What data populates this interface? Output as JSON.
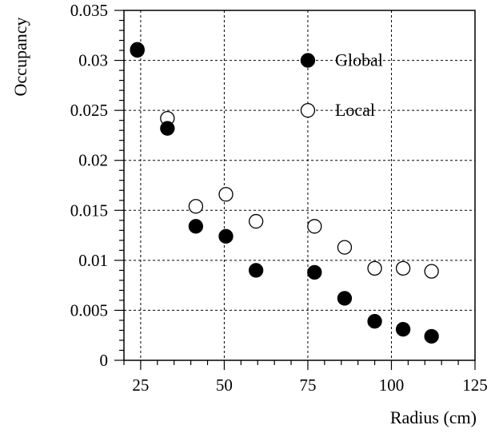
{
  "chart_data": {
    "type": "scatter",
    "title": "",
    "xlabel": "Radius (cm)",
    "ylabel": "Occupancy",
    "xlim": [
      20,
      125
    ],
    "ylim": [
      0,
      0.035
    ],
    "grid": true,
    "legend_position": "upper-right",
    "x_ticks": [
      25,
      50,
      75,
      100,
      125
    ],
    "x_tick_labels": [
      "25",
      "50",
      "75",
      "100",
      "125"
    ],
    "y_ticks": [
      0,
      0.005,
      0.01,
      0.015,
      0.02,
      0.025,
      0.03,
      0.035
    ],
    "y_tick_labels": [
      "0",
      "0.005",
      "0.01",
      "0.015",
      "0.02",
      "0.025",
      "0.03",
      "0.035"
    ],
    "series": [
      {
        "name": "Global",
        "marker": "filled-circle",
        "color": "#000000",
        "x": [
          24,
          33,
          41.5,
          50.5,
          59.5,
          77,
          86,
          95,
          103.5,
          112
        ],
        "y": [
          0.031,
          0.0232,
          0.0134,
          0.0124,
          0.009,
          0.0088,
          0.0062,
          0.0039,
          0.0031,
          0.0024
        ]
      },
      {
        "name": "Local",
        "marker": "open-circle",
        "color": "#000000",
        "x": [
          24,
          33,
          41.5,
          50.5,
          59.5,
          77,
          86,
          95,
          103.5,
          112
        ],
        "y": [
          0.0311,
          0.0242,
          0.0154,
          0.0166,
          0.0139,
          0.0134,
          0.0113,
          0.0092,
          0.0092,
          0.0089
        ]
      }
    ]
  }
}
